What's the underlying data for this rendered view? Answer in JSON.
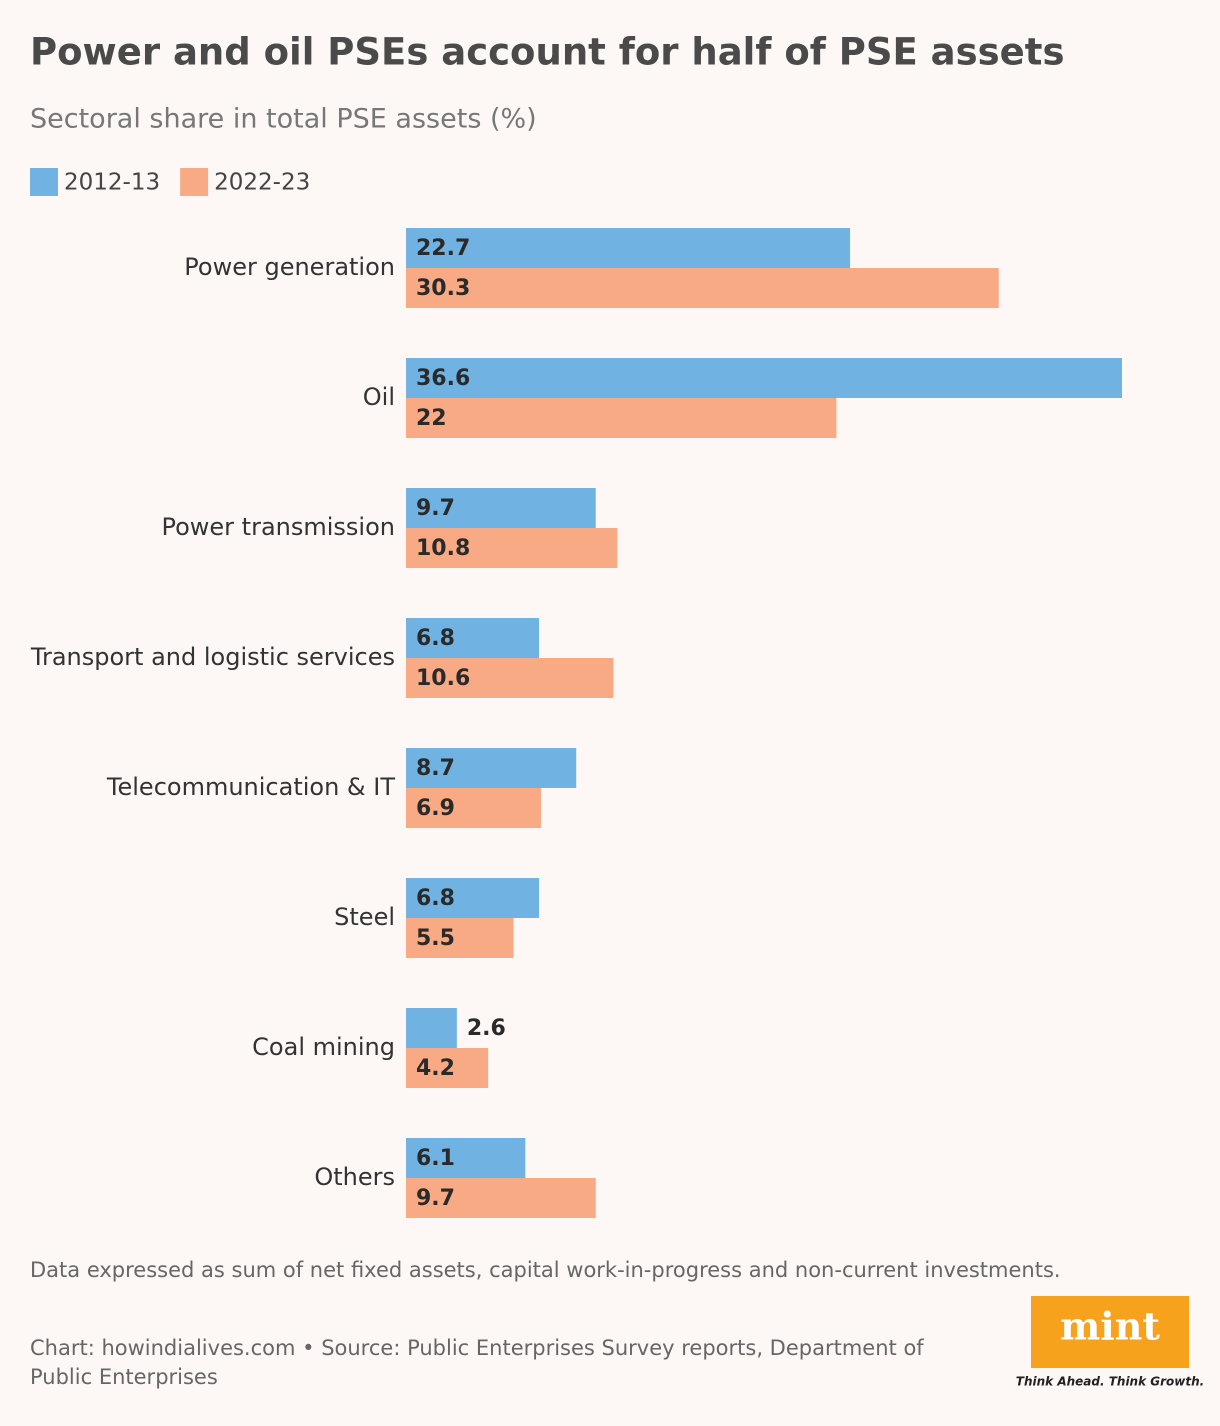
{
  "chart_data": {
    "type": "grouped-hbar",
    "title": "Power and oil PSEs account for half of PSE assets",
    "subtitle": "Sectoral share in total PSE assets (%)",
    "categories": [
      "Power generation",
      "Oil",
      "Power transmission",
      "Transport and logistic services",
      "Telecommunication & IT",
      "Steel",
      "Coal mining",
      "Others"
    ],
    "series": [
      {
        "name": "2012-13",
        "color": "#70b3e2",
        "values": [
          22.7,
          36.6,
          9.7,
          6.8,
          8.7,
          6.8,
          2.6,
          6.1
        ]
      },
      {
        "name": "2022-23",
        "color": "#f7aa84",
        "values": [
          30.3,
          22,
          10.8,
          10.6,
          6.9,
          5.5,
          4.2,
          9.7
        ]
      }
    ],
    "note": "Data expressed as sum of net fixed assets, capital work-in-progress and non-current investments.",
    "source": "Chart: howindialives.com • Source: Public Enterprises Survey reports, Department of Public Enterprises"
  },
  "logo": {
    "name": "mint",
    "tagline": "Think Ahead. Think Growth."
  }
}
